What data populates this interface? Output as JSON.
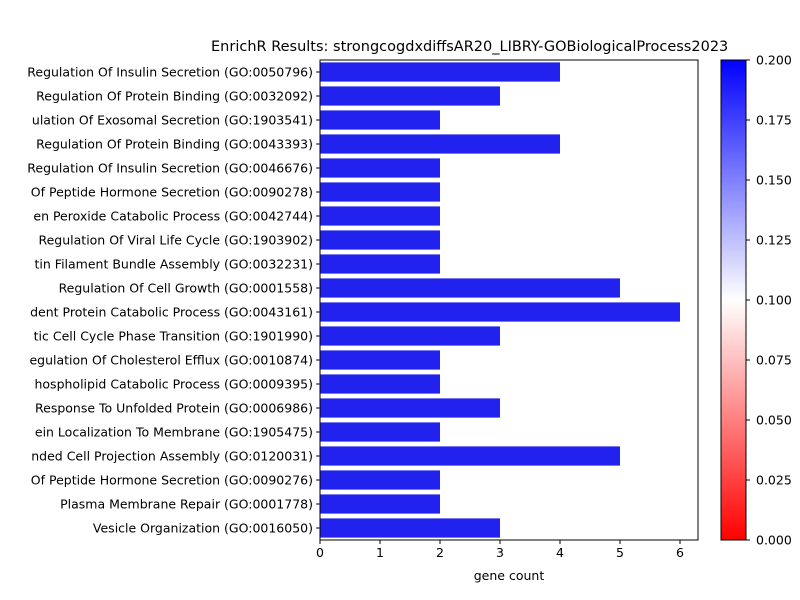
{
  "chart_data": {
    "type": "bar",
    "orientation": "horizontal",
    "title": "EnrichR Results: strongcogdxdiffsAR20_LIBRY-GOBiologicalProcess2023",
    "xlabel": "gene count",
    "ylabel": "",
    "xlim": [
      0,
      6.3
    ],
    "x_ticks": [
      "0",
      "1",
      "2",
      "3",
      "4",
      "5",
      "6"
    ],
    "grid": false,
    "bar_color": "#2222ee",
    "categories": [
      "Regulation Of Insulin Secretion (GO:0050796)",
      "Regulation Of Protein Binding (GO:0032092)",
      "ulation Of Exosomal Secretion (GO:1903541)",
      "Regulation Of Protein Binding (GO:0043393)",
      "Regulation Of Insulin Secretion (GO:0046676)",
      "Of Peptide Hormone Secretion (GO:0090278)",
      "en Peroxide Catabolic Process (GO:0042744)",
      "Regulation Of Viral Life Cycle (GO:1903902)",
      "tin Filament Bundle Assembly (GO:0032231)",
      "Regulation Of Cell Growth (GO:0001558)",
      "dent Protein Catabolic Process (GO:0043161)",
      "tic Cell Cycle Phase Transition (GO:1901990)",
      "egulation Of Cholesterol Efflux (GO:0010874)",
      "hospholipid Catabolic Process (GO:0009395)",
      "Response To Unfolded Protein (GO:0006986)",
      "ein Localization To Membrane (GO:1905475)",
      "nded Cell Projection Assembly (GO:0120031)",
      "Of Peptide Hormone Secretion (GO:0090276)",
      "Plasma Membrane Repair (GO:0001778)",
      "Vesicle Organization (GO:0016050)"
    ],
    "values": [
      4,
      3,
      2,
      4,
      2,
      2,
      2,
      2,
      2,
      5,
      6,
      3,
      2,
      2,
      3,
      2,
      5,
      2,
      2,
      3
    ],
    "colorbar": {
      "min": 0.0,
      "max": 0.2,
      "colors": [
        "#ff0000",
        "#ffffff",
        "#0000ff"
      ],
      "ticks": [
        "0.000",
        "0.025",
        "0.050",
        "0.075",
        "0.100",
        "0.125",
        "0.150",
        "0.175",
        "0.200"
      ]
    }
  }
}
